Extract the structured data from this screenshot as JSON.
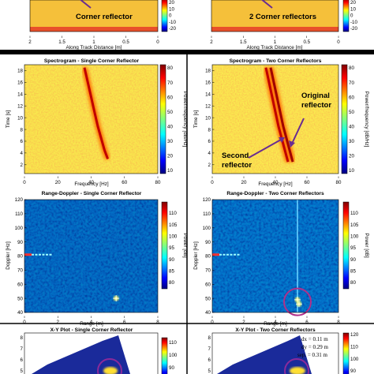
{
  "chart_data": [
    {
      "id": "top-left",
      "type": "heatmap",
      "xlabel": "Along Track Distance [m]",
      "xticks": [
        "2",
        "1.5",
        "1",
        "0.5",
        "0"
      ],
      "cbar_ticks": [
        "20",
        "10",
        "0",
        "-10",
        "-20"
      ],
      "annotation": "Corner reflector"
    },
    {
      "id": "top-right",
      "type": "heatmap",
      "xlabel": "Along Track Distance [m]",
      "xticks": [
        "2",
        "1.5",
        "1",
        "0.5",
        "0"
      ],
      "cbar_ticks": [
        "20",
        "10",
        "0",
        "-10",
        "-20"
      ],
      "annotation": "2 Corner reflectors"
    },
    {
      "id": "spectrogram-single",
      "type": "heatmap",
      "title": "Spectrogram - Single Corner Reflector",
      "xlabel": "Frequency [Hz]",
      "ylabel": "Time [s]",
      "xlim": [
        0,
        80
      ],
      "ylim": [
        0.5,
        19
      ],
      "xticks": [
        "0",
        "20",
        "40",
        "60",
        "80"
      ],
      "yticks": [
        "2",
        "4",
        "6",
        "8",
        "10",
        "12",
        "14",
        "16",
        "18"
      ],
      "colorbar": {
        "label": "Power/frequency [dB/Hz]",
        "ticks": [
          "80",
          "70",
          "60",
          "50",
          "40",
          "30",
          "20",
          "10"
        ]
      },
      "series": [
        {
          "x": [
            36,
            38,
            40,
            42,
            44,
            46,
            48,
            50
          ],
          "y": [
            18.5,
            16,
            13.5,
            11,
            8.5,
            6.5,
            4.5,
            3
          ]
        }
      ]
    },
    {
      "id": "spectrogram-two",
      "type": "heatmap",
      "title": "Spectrogram - Two Corner Reflectors",
      "xlabel": "Frequency [Hz]",
      "ylabel": "Time [s]",
      "xlim": [
        0,
        80
      ],
      "ylim": [
        0.5,
        19
      ],
      "xticks": [
        "0",
        "20",
        "40",
        "60",
        "80"
      ],
      "yticks": [
        "2",
        "4",
        "6",
        "8",
        "10",
        "12",
        "14",
        "16",
        "18"
      ],
      "colorbar": {
        "label": "Power/frequency [dB/Hz]",
        "ticks": [
          "80",
          "70",
          "60",
          "50",
          "40",
          "30",
          "20",
          "10"
        ]
      },
      "annotations": [
        "Original",
        "reflector",
        "Second",
        "reflector"
      ],
      "series": [
        {
          "x": [
            37,
            39,
            41,
            43,
            45,
            47,
            49,
            51
          ],
          "y": [
            18.5,
            16,
            13.5,
            11,
            8.5,
            6.5,
            4.5,
            2.5
          ]
        },
        {
          "x": [
            34,
            36,
            38,
            40,
            42,
            44,
            46,
            48
          ],
          "y": [
            18.5,
            16,
            13.5,
            11,
            8.5,
            6.5,
            4.5,
            2.5
          ]
        }
      ]
    },
    {
      "id": "range-doppler-single",
      "type": "heatmap",
      "title": "Range-Doppler - Single Corner Reflector",
      "xlabel": "Range [m]",
      "ylabel": "Doppler [Hz]",
      "xlim": [
        0,
        8
      ],
      "ylim": [
        40,
        120
      ],
      "xticks": [
        "0",
        "2",
        "4",
        "6",
        "8"
      ],
      "yticks": [
        "40",
        "50",
        "60",
        "70",
        "80",
        "90",
        "100",
        "110",
        "120"
      ],
      "colorbar": {
        "label": "Power [dB]",
        "ticks": [
          "110",
          "105",
          "100",
          "95",
          "90",
          "85",
          "80"
        ]
      },
      "points": [
        {
          "x": 5.5,
          "y": 50
        }
      ],
      "zero_range_line_y": 81
    },
    {
      "id": "range-doppler-two",
      "type": "heatmap",
      "title": "Range-Doppler - Two Corner Reflectors",
      "xlabel": "Range [m]",
      "ylabel": "Doppler [Hz]",
      "xlim": [
        0,
        8
      ],
      "ylim": [
        40,
        120
      ],
      "xticks": [
        "0",
        "2",
        "4",
        "6",
        "8"
      ],
      "yticks": [
        "40",
        "50",
        "60",
        "70",
        "80",
        "90",
        "100",
        "110",
        "120"
      ],
      "colorbar": {
        "label": "Power [dB]",
        "ticks": [
          "110",
          "105",
          "100",
          "95",
          "90",
          "85",
          "80"
        ]
      },
      "points": [
        {
          "x": 5.4,
          "y": 49
        },
        {
          "x": 5.5,
          "y": 46
        }
      ],
      "zero_range_line_y": 81
    },
    {
      "id": "xy-single",
      "type": "heatmap",
      "title": "X-Y Plot - Single Corner Reflector",
      "yticks": [
        "8",
        "7",
        "6",
        "5"
      ],
      "colorbar": {
        "ticks": [
          "110",
          "100",
          "90"
        ]
      }
    },
    {
      "id": "xy-two",
      "type": "heatmap",
      "title": "X-Y Plot - Two Corner Reflectors",
      "yticks": [
        "8",
        "7",
        "6",
        "5"
      ],
      "colorbar": {
        "ticks": [
          "120",
          "110",
          "100",
          "90"
        ]
      },
      "annotations": [
        "dx = 0.11 m",
        "dy = 0.29 m",
        "sep. = 0.31 m"
      ]
    }
  ]
}
